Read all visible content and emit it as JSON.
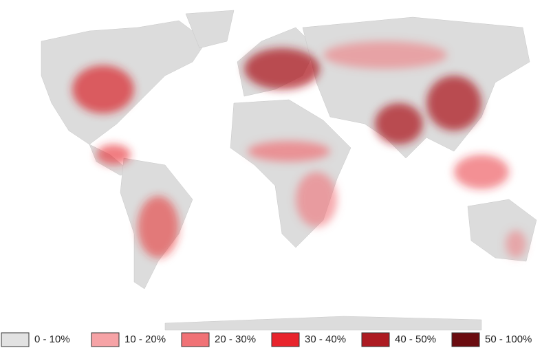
{
  "legend": {
    "items": [
      {
        "label": "0 - 10%",
        "color": "#e2e2e2"
      },
      {
        "label": "10 - 20%",
        "color": "#f6a3a6"
      },
      {
        "label": "20 - 30%",
        "color": "#f07276"
      },
      {
        "label": "30 - 40%",
        "color": "#e8242c"
      },
      {
        "label": "40 - 50%",
        "color": "#ad1b22"
      },
      {
        "label": "50 - 100%",
        "color": "#6b0c10"
      }
    ]
  }
}
